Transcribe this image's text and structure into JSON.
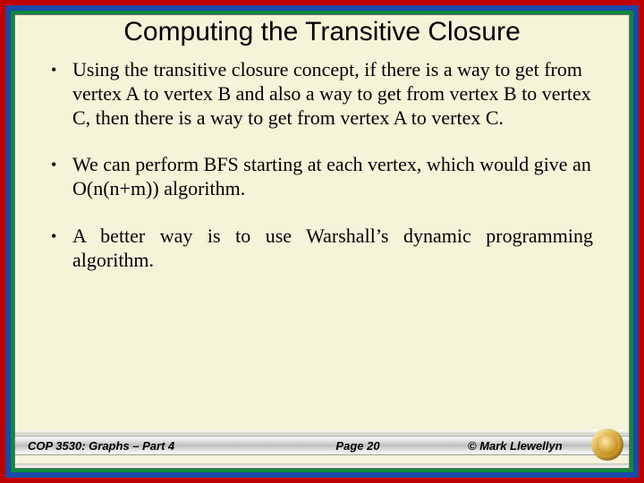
{
  "colors": {
    "frame_outer": "#c00000",
    "frame_mid": "#1a4aa8",
    "frame_inner": "#0a8a3a",
    "slide_bg": "#f6f4d8",
    "text": "#000000",
    "footer_bar_mid": "#bdbdbd",
    "logo_outer": "#d9a838",
    "logo_inner": "#c98f1e"
  },
  "typography": {
    "title_font": "Arial",
    "title_size_pt": 23,
    "body_font": "Times New Roman",
    "body_size_pt": 17,
    "footer_font": "Arial",
    "footer_size_pt": 10,
    "footer_weight": "bold",
    "footer_style": "italic"
  },
  "title": "Computing the Transitive Closure",
  "bullets": [
    "Using the transitive closure concept, if there is a way to get from vertex A to vertex B and also a way to get from vertex B to vertex C, then there is a way to get from vertex A to vertex C.",
    "We can perform BFS starting at each vertex, which would give an O(n(n+m)) algorithm.",
    "A better way is to use Warshall’s dynamic programming algorithm."
  ],
  "footer": {
    "left": "COP 3530: Graphs – Part 4",
    "center": "Page 20",
    "right": "© Mark Llewellyn"
  }
}
